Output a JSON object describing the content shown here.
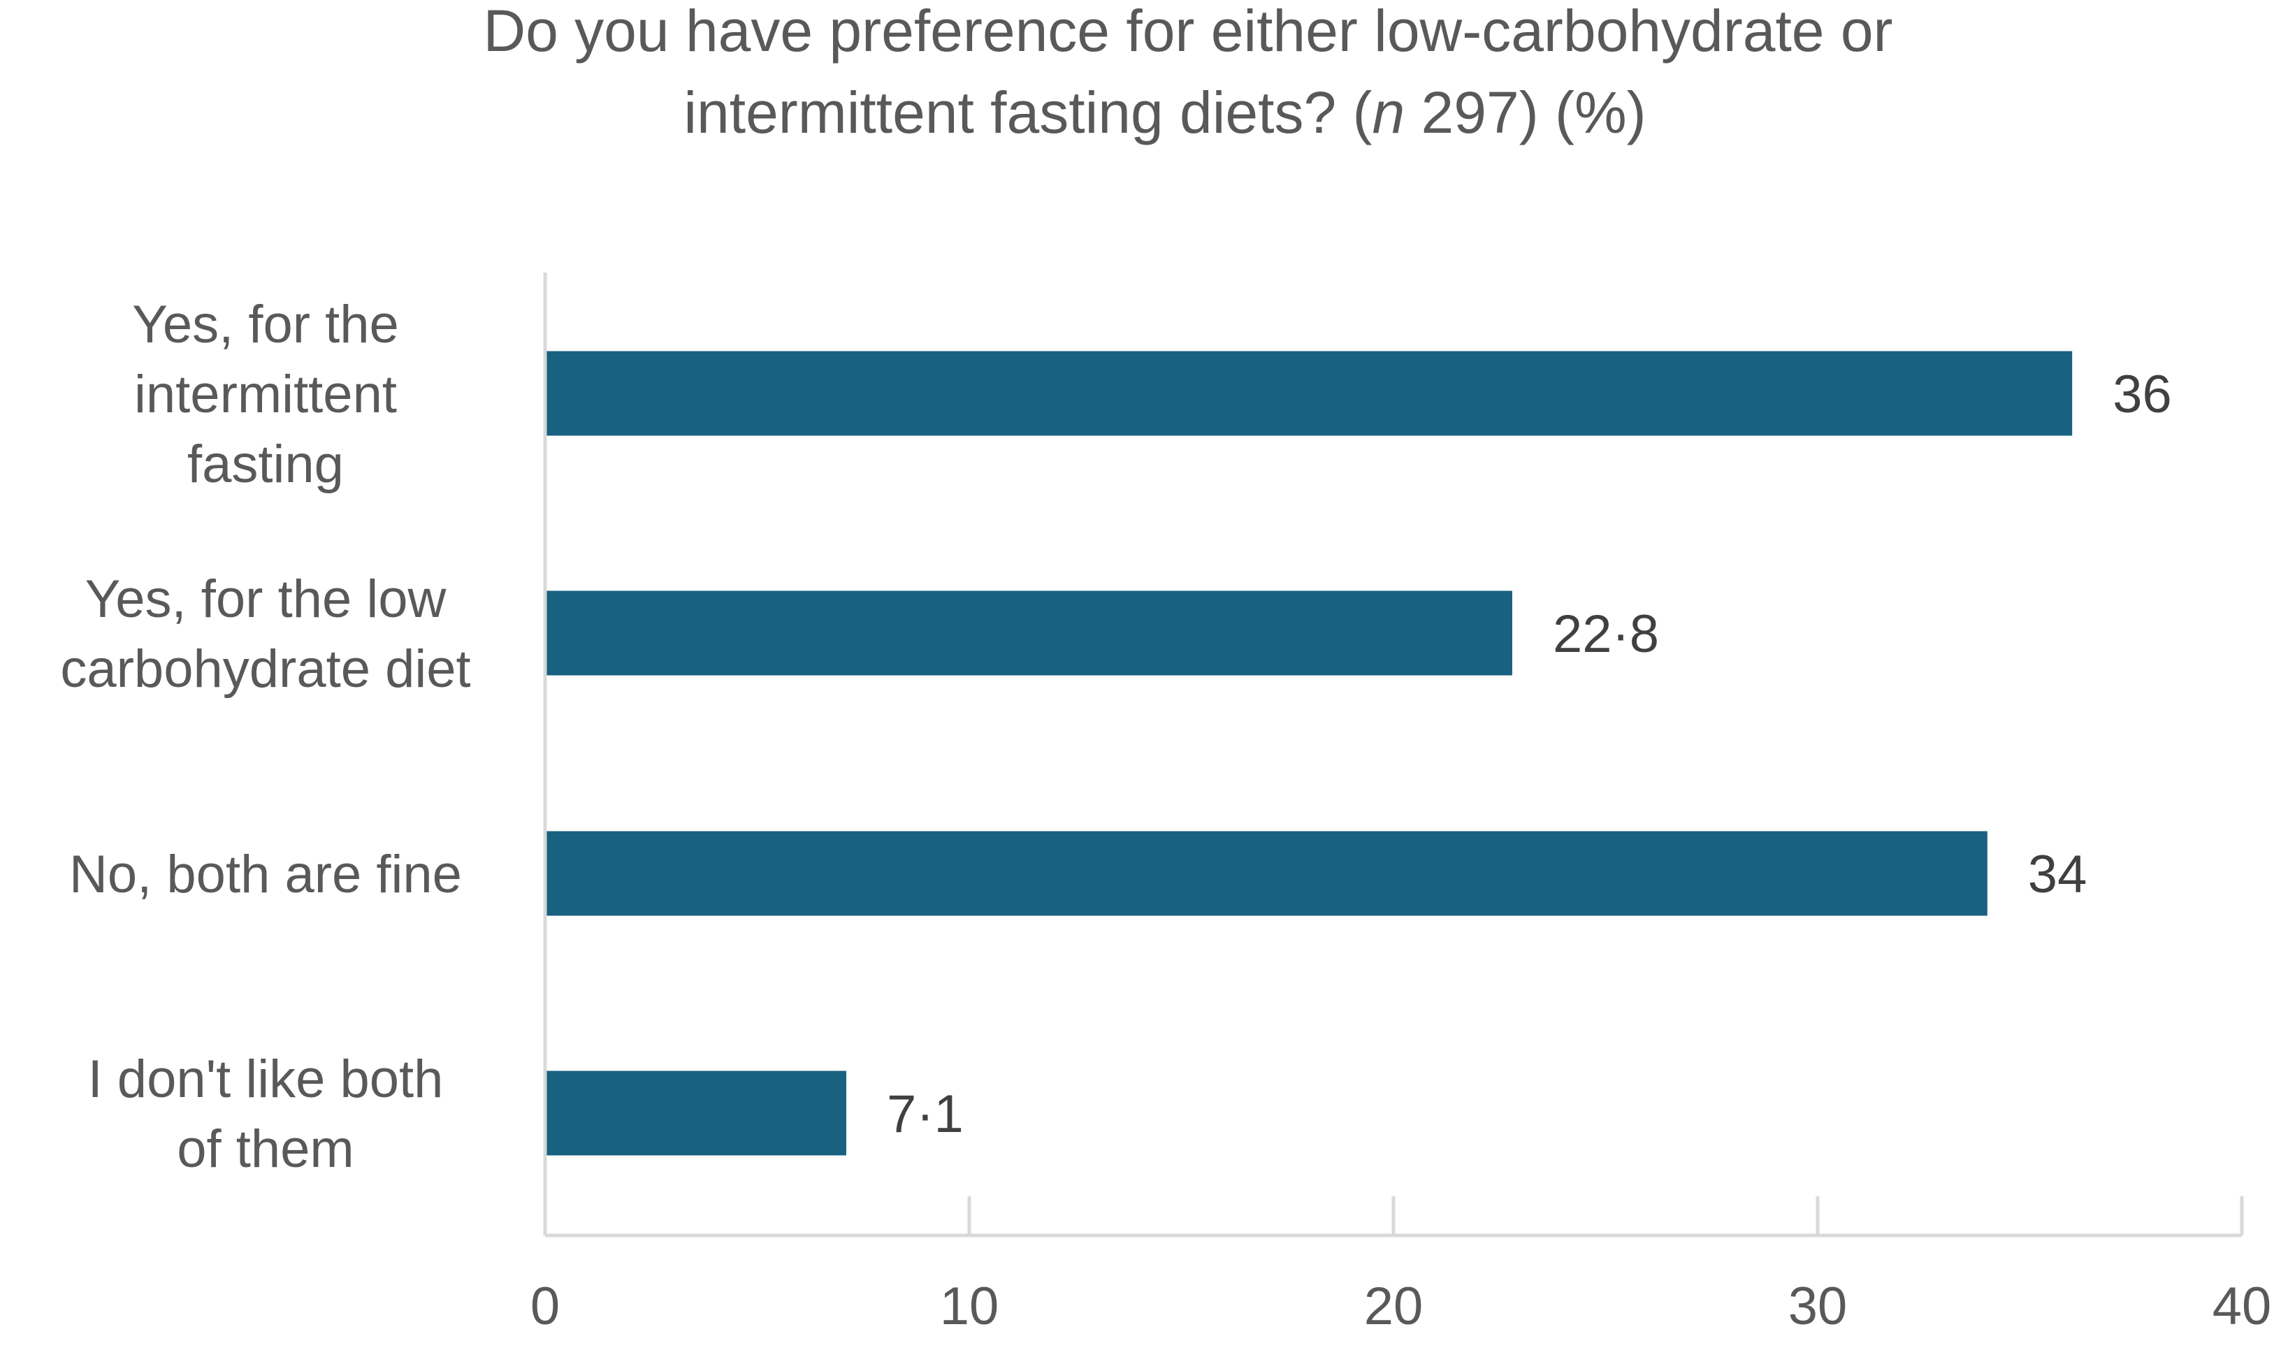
{
  "chart_data": {
    "type": "bar",
    "orientation": "horizontal",
    "title_main": "Do you have preference for either low-carbohydrate or intermittent fasting diets? (",
    "title_italic": "n",
    "title_tail": " 297) (%)",
    "categories": [
      "Yes, for the intermittent fasting",
      "Yes, for the low carbohydrate diet",
      "No, both are fine",
      "I don't like both of them"
    ],
    "values": [
      36,
      22.8,
      34,
      7.1
    ],
    "data_labels": [
      "36",
      "22·8",
      "34",
      "7·1"
    ],
    "xlim": [
      0,
      40
    ],
    "x_ticks": [
      0,
      10,
      20,
      30,
      40
    ],
    "grid": false,
    "legend": "none",
    "colors": {
      "bar": "#186180",
      "axis": "#d9d9d9",
      "tick_label": "#595959",
      "data_label": "#404040",
      "title": "#595959",
      "category_label": "#595959"
    }
  }
}
